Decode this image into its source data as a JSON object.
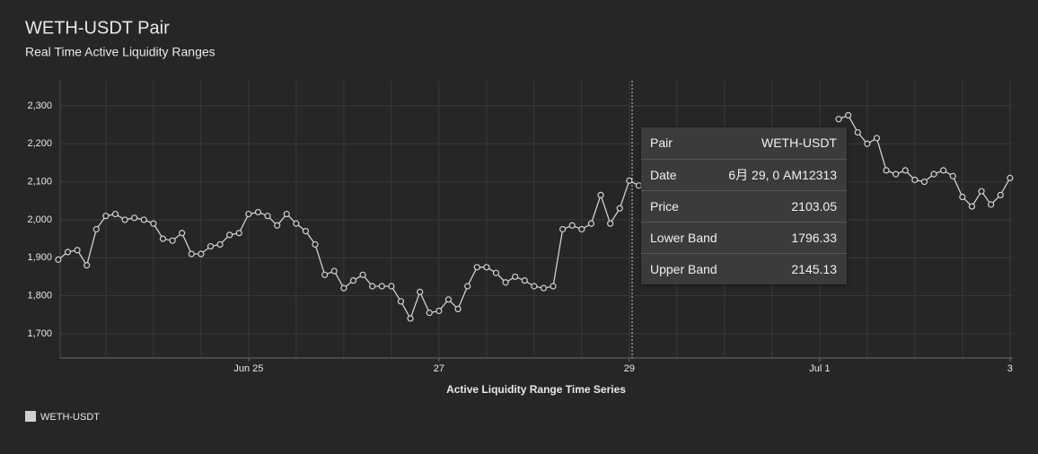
{
  "chart_data": {
    "type": "line",
    "title": "WETH-USDT Pair",
    "subtitle": "Real Time Active Liquidity Ranges",
    "x_label": "Active Liquidity Range Time Series",
    "x": [
      23,
      23.1,
      23.2,
      23.3,
      23.4,
      23.5,
      23.6,
      23.7,
      23.8,
      23.9,
      24,
      24.1,
      24.2,
      24.3,
      24.4,
      24.5,
      24.6,
      24.7,
      24.8,
      24.9,
      25,
      25.1,
      25.2,
      25.3,
      25.4,
      25.5,
      25.6,
      25.7,
      25.8,
      25.9,
      26,
      26.1,
      26.2,
      26.3,
      26.4,
      26.5,
      26.6,
      26.7,
      26.8,
      26.9,
      27,
      27.1,
      27.2,
      27.3,
      27.4,
      27.5,
      27.6,
      27.7,
      27.8,
      27.9,
      28,
      28.1,
      28.2,
      28.3,
      28.4,
      28.5,
      28.6,
      28.7,
      28.8,
      28.9,
      29,
      29.1,
      29.2,
      29.3,
      29.4,
      29.5,
      29.6,
      29.7,
      29.8,
      29.9,
      30,
      30.1,
      30.2,
      30.3,
      30.4,
      30.5,
      30.6,
      30.7,
      30.8,
      30.9,
      31,
      31.1,
      31.2,
      31.3,
      31.4,
      31.5,
      31.6,
      31.7,
      31.8,
      31.9,
      32,
      32.1,
      32.2,
      32.3,
      32.4,
      32.5,
      32.6,
      32.7,
      32.8,
      32.9,
      33
    ],
    "series": [
      {
        "name": "WETH-USDT",
        "color": "#d0d0d0",
        "values": [
          1895,
          1915,
          1920,
          1880,
          1975,
          2010,
          2015,
          2000,
          2005,
          2000,
          1990,
          1950,
          1945,
          1965,
          1910,
          1910,
          1930,
          1935,
          1960,
          1965,
          2015,
          2020,
          2010,
          1985,
          2015,
          1990,
          1970,
          1935,
          1855,
          1865,
          1820,
          1840,
          1855,
          1825,
          1825,
          1825,
          1785,
          1740,
          1810,
          1755,
          1760,
          1790,
          1765,
          1825,
          1875,
          1875,
          1860,
          1835,
          1850,
          1840,
          1825,
          1820,
          1825,
          1975,
          1985,
          1975,
          1990,
          2065,
          1990,
          2030,
          2103,
          2090,
          null,
          null,
          null,
          null,
          null,
          null,
          null,
          null,
          null,
          null,
          null,
          null,
          null,
          null,
          null,
          null,
          null,
          null,
          null,
          null,
          2265,
          2275,
          2230,
          2200,
          2215,
          2130,
          2120,
          2130,
          2105,
          2100,
          2120,
          2130,
          2115,
          2060,
          2035,
          2075,
          2040,
          2065,
          2110
        ]
      }
    ],
    "xlim": [
      23.02,
      33.03
    ],
    "xticks": [
      {
        "value": 25,
        "label": "Jun 25"
      },
      27,
      29,
      {
        "value": 31,
        "label": "Jul 1"
      },
      {
        "value": 33,
        "label": "3"
      }
    ],
    "ylim": [
      1636,
      2366
    ],
    "yticks": [
      {
        "value": 1700,
        "label": "1,700"
      },
      {
        "value": 1800,
        "label": "1,800"
      },
      {
        "value": 1900,
        "label": "1,900"
      },
      {
        "value": 2000,
        "label": "2,000"
      },
      {
        "value": 2100,
        "label": "2,100"
      },
      {
        "value": 2200,
        "label": "2,200"
      },
      {
        "value": 2300,
        "label": "2,300"
      }
    ],
    "grid": true,
    "legend": "bottom-left",
    "tooltip": {
      "rows": [
        [
          "Pair",
          "WETH-USDT"
        ],
        [
          "Date",
          "6月 29, 0 AM12313"
        ],
        [
          "Price",
          "2103.05"
        ],
        [
          "Lower Band",
          "1796.33"
        ],
        [
          "Upper Band",
          "2145.13"
        ]
      ]
    }
  }
}
